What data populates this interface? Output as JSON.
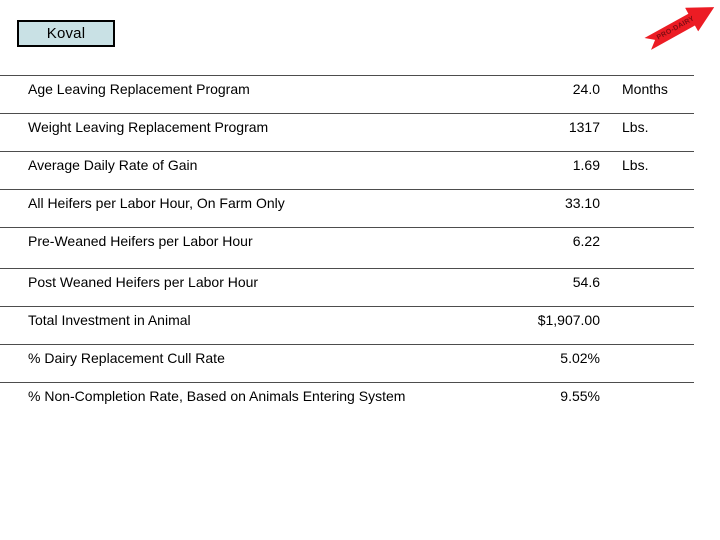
{
  "slide": {
    "title_box": {
      "label": "Koval",
      "fill": "#c9e1e5",
      "border_color": "#000000"
    },
    "badge": {
      "label": "PRO-DAIRY",
      "fill": "#ec1c24",
      "text_color": "#7e0d12"
    },
    "table": {
      "row_line_color": "#4d4d4d",
      "rows": [
        {
          "label": "Age Leaving Replacement Program",
          "value": "24.0",
          "unit": "Months"
        },
        {
          "label": "Weight Leaving Replacement Program",
          "value": "1317",
          "unit": "Lbs."
        },
        {
          "label": "Average Daily Rate of Gain",
          "value": "1.69",
          "unit": "Lbs."
        },
        {
          "label": "All Heifers per Labor Hour, On Farm Only",
          "value": "33.10",
          "unit": ""
        },
        {
          "label": "Pre-Weaned Heifers per Labor Hour",
          "value": "6.22",
          "unit": ""
        },
        {
          "label": "Post Weaned Heifers per Labor Hour",
          "value": "54.6",
          "unit": ""
        },
        {
          "label": "Total Investment in Animal",
          "value": "$1,907.00",
          "unit": ""
        },
        {
          "label": "% Dairy Replacement Cull Rate",
          "value": "5.02%",
          "unit": ""
        },
        {
          "label": "% Non-Completion Rate, Based on Animals Entering System",
          "value": "9.55%",
          "unit": ""
        }
      ]
    },
    "colors": {
      "background": "#ffffff",
      "text": "#000000"
    }
  }
}
